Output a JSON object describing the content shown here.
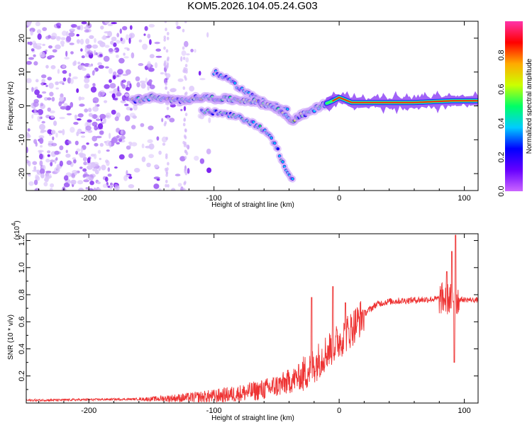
{
  "title": "KOM5.2026.104.05.24.G03",
  "chart_data": [
    {
      "type": "heatmap",
      "name": "spectrogram",
      "xlabel": "Height of straight line (km)",
      "ylabel": "Frequency (Hz)",
      "xlim": [
        -250,
        111
      ],
      "ylim": [
        -25,
        25
      ],
      "xticks": [
        -200,
        -100,
        0,
        100
      ],
      "yticks": [
        -20,
        -10,
        0,
        10,
        20
      ],
      "ridge_main": {
        "x": [
          -165,
          -150,
          -130,
          -110,
          -90,
          -70,
          -55,
          -45,
          -38,
          -32,
          -25,
          -15,
          -5,
          0,
          10,
          30,
          60,
          90,
          111
        ],
        "y": [
          1.5,
          2.5,
          1.5,
          2.5,
          2.0,
          1.5,
          0.0,
          -2.0,
          -4.5,
          -3.0,
          -2.0,
          0.0,
          1.5,
          2.5,
          1.0,
          1.0,
          1.0,
          1.5,
          1.5
        ]
      },
      "ridge_lower": {
        "x": [
          -110,
          -90,
          -75,
          -60,
          -50,
          -45,
          -40,
          -37
        ],
        "y": [
          -1.5,
          -2.5,
          -4.0,
          -7.0,
          -12.0,
          -17.0,
          -20.0,
          -22.0
        ]
      },
      "ridge_upper": {
        "x": [
          -100,
          -90,
          -80,
          -70,
          -60,
          -50,
          -40
        ],
        "y": [
          10.0,
          8.0,
          5.5,
          3.0,
          1.5,
          0.0,
          -1.5
        ]
      },
      "colorbar": {
        "label": "Normalized spectral amplitude",
        "ticks": [
          0.0,
          0.2,
          0.4,
          0.6,
          0.8
        ],
        "range": [
          0.0,
          1.0
        ],
        "colors": [
          "#ffffff",
          "#cc66ff",
          "#6600ff",
          "#0000ff",
          "#00ccff",
          "#00ff66",
          "#ccff00",
          "#ffaa00",
          "#ff0000",
          "#ff33aa"
        ]
      }
    },
    {
      "type": "line",
      "name": "snr",
      "xlabel": "Height of straight line (km)",
      "ylabel": "SNR (10 * v/v)",
      "scale_label": "(x10",
      "scale_exp": "4",
      "xlim": [
        -250,
        111
      ],
      "ylim": [
        0.0,
        1.25
      ],
      "xticks": [
        -200,
        -100,
        0,
        100
      ],
      "yticks": [
        0.2,
        0.4,
        0.6,
        0.8,
        1.0,
        1.2
      ],
      "ytick_labels": [
        "0.2",
        "0.4",
        "0.6",
        "0.8",
        "1.0",
        "1.2"
      ],
      "color": "#ee3333",
      "trend": {
        "x": [
          -250,
          -200,
          -150,
          -120,
          -100,
          -80,
          -60,
          -45,
          -30,
          -20,
          -10,
          0,
          10,
          20,
          30,
          40,
          60,
          80,
          111
        ],
        "y": [
          0.02,
          0.025,
          0.03,
          0.04,
          0.05,
          0.07,
          0.1,
          0.14,
          0.2,
          0.28,
          0.38,
          0.46,
          0.55,
          0.66,
          0.73,
          0.75,
          0.76,
          0.77,
          0.76
        ]
      },
      "spikes": [
        {
          "x": -22,
          "y": 0.78
        },
        {
          "x": -5,
          "y": 0.86
        },
        {
          "x": 5,
          "y": 0.74
        },
        {
          "x": 86,
          "y": 0.97
        },
        {
          "x": 90,
          "y": 1.12
        },
        {
          "x": 93,
          "y": 1.24
        },
        {
          "x": 92,
          "y": 0.3
        }
      ]
    }
  ]
}
